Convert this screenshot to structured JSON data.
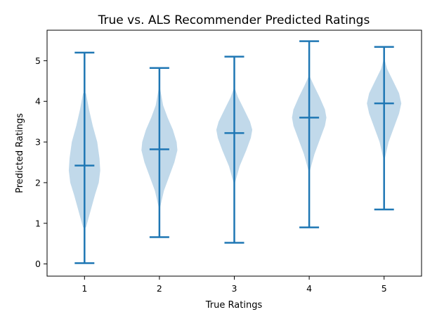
{
  "chart_data": {
    "type": "violin",
    "title": "True vs. ALS Recommender Predicted Ratings",
    "xlabel": "True Ratings",
    "ylabel": "Predicted Ratings",
    "categories": [
      "1",
      "2",
      "3",
      "4",
      "5"
    ],
    "yticks": [
      "0",
      "1",
      "2",
      "3",
      "4",
      "5"
    ],
    "ylim": [
      -0.3,
      5.75
    ],
    "xlim": [
      0.5,
      5.5
    ],
    "grid": false,
    "colors": {
      "body": "#1f77b4",
      "lines": "#1f77b4"
    },
    "violins": [
      {
        "category": "1",
        "min": 0.02,
        "max": 5.2,
        "median": 2.42,
        "profile": [
          [
            0.9,
            0.02
          ],
          [
            1.3,
            0.08
          ],
          [
            1.7,
            0.14
          ],
          [
            2.0,
            0.19
          ],
          [
            2.3,
            0.21
          ],
          [
            2.6,
            0.2
          ],
          [
            3.0,
            0.17
          ],
          [
            3.4,
            0.11
          ],
          [
            3.8,
            0.06
          ],
          [
            4.2,
            0.02
          ]
        ]
      },
      {
        "category": "2",
        "min": 0.66,
        "max": 4.82,
        "median": 2.82,
        "profile": [
          [
            1.4,
            0.01
          ],
          [
            1.8,
            0.06
          ],
          [
            2.2,
            0.14
          ],
          [
            2.5,
            0.2
          ],
          [
            2.8,
            0.24
          ],
          [
            3.0,
            0.23
          ],
          [
            3.3,
            0.18
          ],
          [
            3.6,
            0.11
          ],
          [
            3.9,
            0.05
          ],
          [
            4.3,
            0.01
          ]
        ]
      },
      {
        "category": "3",
        "min": 0.52,
        "max": 5.1,
        "median": 3.22,
        "profile": [
          [
            2.0,
            0.01
          ],
          [
            2.4,
            0.07
          ],
          [
            2.8,
            0.16
          ],
          [
            3.1,
            0.22
          ],
          [
            3.3,
            0.24
          ],
          [
            3.5,
            0.21
          ],
          [
            3.8,
            0.13
          ],
          [
            4.1,
            0.05
          ],
          [
            4.3,
            0.01
          ]
        ]
      },
      {
        "category": "4",
        "min": 0.9,
        "max": 5.48,
        "median": 3.6,
        "profile": [
          [
            2.3,
            0.01
          ],
          [
            2.7,
            0.07
          ],
          [
            3.1,
            0.15
          ],
          [
            3.4,
            0.21
          ],
          [
            3.6,
            0.23
          ],
          [
            3.8,
            0.21
          ],
          [
            4.1,
            0.14
          ],
          [
            4.4,
            0.06
          ],
          [
            4.6,
            0.01
          ]
        ]
      },
      {
        "category": "5",
        "min": 1.34,
        "max": 5.34,
        "median": 3.95,
        "profile": [
          [
            2.6,
            0.01
          ],
          [
            3.0,
            0.06
          ],
          [
            3.4,
            0.14
          ],
          [
            3.7,
            0.2
          ],
          [
            3.95,
            0.23
          ],
          [
            4.2,
            0.2
          ],
          [
            4.5,
            0.12
          ],
          [
            4.8,
            0.04
          ],
          [
            5.0,
            0.01
          ]
        ]
      }
    ]
  }
}
